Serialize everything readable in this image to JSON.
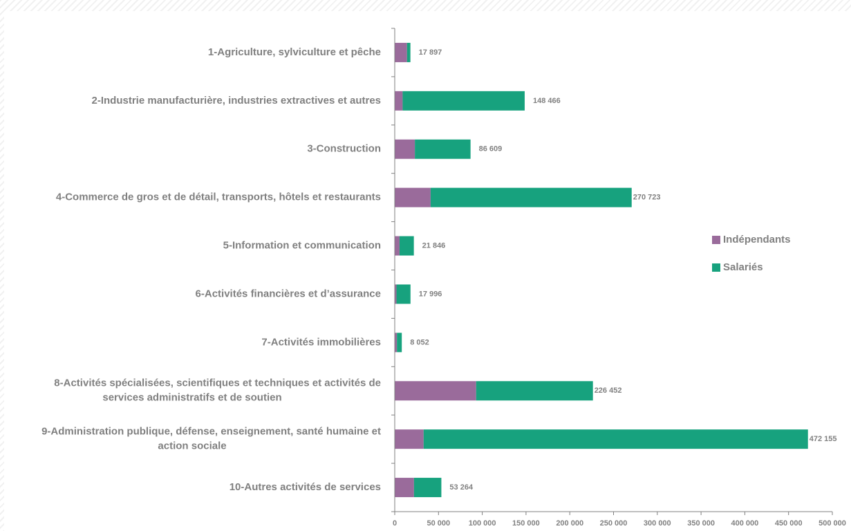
{
  "chart_data": {
    "type": "bar",
    "orientation": "horizontal",
    "stacked": true,
    "title": "",
    "xlabel": "",
    "ylabel": "",
    "xlim": [
      0,
      500000
    ],
    "xticks": [
      0,
      50000,
      100000,
      150000,
      200000,
      250000,
      300000,
      350000,
      400000,
      450000,
      500000
    ],
    "xtick_labels": [
      "0",
      "50 000",
      "100 000",
      "150 000",
      "200 000",
      "250 000",
      "300 000",
      "350 000",
      "400 000",
      "450 000",
      "500 000"
    ],
    "grid": false,
    "legend_position": "right",
    "categories": [
      [
        "1-Agriculture, sylviculture et pêche"
      ],
      [
        "2-Industrie manufacturière, industries extractives et autres"
      ],
      [
        "3-Construction"
      ],
      [
        "4-Commerce de gros et de détail, transports, hôtels et restaurants"
      ],
      [
        "5-Information et communication"
      ],
      [
        "6-Activités financières et d’assurance"
      ],
      [
        "7-Activités immobilières"
      ],
      [
        "8-Activités spécialisées, scientifiques et techniques et activités de",
        "services administratifs et de soutien"
      ],
      [
        "9-Administration publique, défense, enseignement, santé humaine et",
        "action sociale"
      ],
      [
        "10-Autres activités de services"
      ]
    ],
    "totals": [
      17897,
      148466,
      86609,
      270723,
      21846,
      17996,
      8052,
      226452,
      472155,
      53264
    ],
    "total_labels": [
      "17 897",
      "148 466",
      "86 609",
      "270 723",
      "21 846",
      "17 996",
      "8 052",
      "226 452",
      "472 155",
      "53 264"
    ],
    "series": [
      {
        "name": "Indépendants",
        "color": "#9a6b9b",
        "values": [
          14000,
          9000,
          23000,
          41000,
          5500,
          2000,
          2500,
          93000,
          33000,
          22000
        ]
      },
      {
        "name": "Salariés",
        "color": "#17a27e",
        "values": [
          3897,
          139466,
          63609,
          229723,
          16346,
          15996,
          5552,
          133452,
          439155,
          31264
        ]
      }
    ]
  }
}
